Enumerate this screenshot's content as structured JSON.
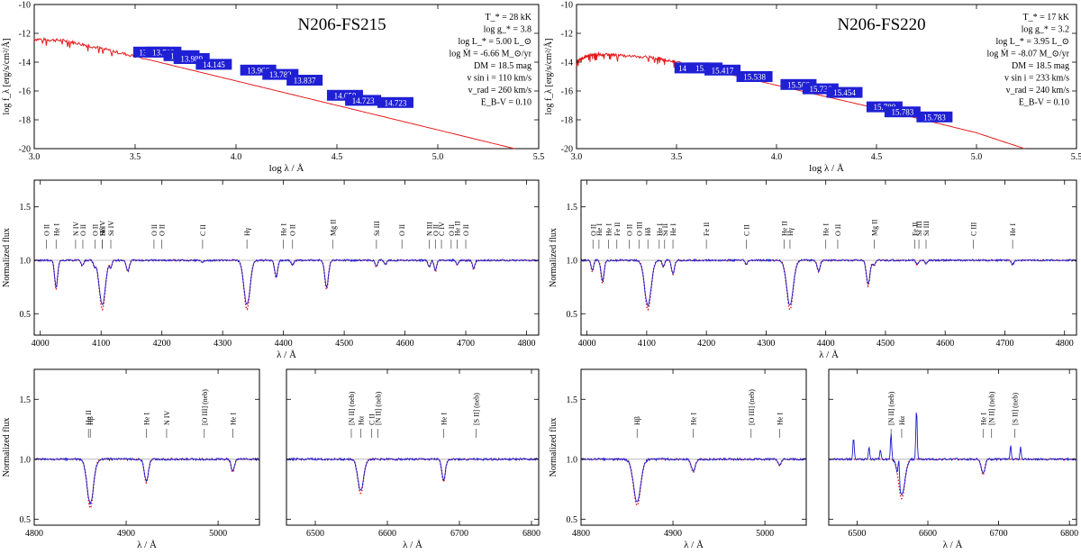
{
  "colors": {
    "model": "#e41a1c",
    "observed": "#1a1acc",
    "phot_box": "#1f1fd6",
    "axis": "#000000",
    "continuum": "#aaaaaa",
    "line_marker": "#444444"
  },
  "chart_data": [
    {
      "id": "sed-fs215",
      "type": "line",
      "title": "N206-FS215",
      "xlabel": "log λ / Å",
      "ylabel": "log f_λ  [erg/s/cm²/Å]",
      "xlim": [
        3.0,
        5.5
      ],
      "ylim": [
        -20,
        -10
      ],
      "xticks": [
        3.0,
        3.5,
        4.0,
        4.5,
        5.0,
        5.5
      ],
      "xtick_labels": [
        "3.0",
        "3.5",
        "4.0",
        "4.5",
        "5.0",
        "5.5"
      ],
      "yticks": [
        -20,
        -18,
        -16,
        -14,
        -12,
        -10
      ],
      "ytick_labels": [
        "-20",
        "-18",
        "-16",
        "-14",
        "-12",
        "-10"
      ],
      "series": [
        {
          "name": "model SED",
          "x": [
            3.0,
            3.15,
            3.3,
            3.5,
            4.0,
            4.5,
            5.0,
            5.38
          ],
          "y": [
            -12.4,
            -12.5,
            -12.95,
            -13.6,
            -15.3,
            -17.0,
            -18.7,
            -20.0
          ]
        }
      ],
      "photometry": [
        {
          "x": 3.58,
          "y": -13.3,
          "label": "13.13.7"
        },
        {
          "x": 3.64,
          "y": -13.3,
          "label": "13.712"
        },
        {
          "x": 3.73,
          "y": -13.55,
          "label": "13.516"
        },
        {
          "x": 3.78,
          "y": -13.75,
          "label": "13.989"
        },
        {
          "x": 3.89,
          "y": -14.15,
          "label": "14.145"
        },
        {
          "x": 4.11,
          "y": -14.55,
          "label": "13.966"
        },
        {
          "x": 4.22,
          "y": -14.85,
          "label": "13.782"
        },
        {
          "x": 4.34,
          "y": -15.25,
          "label": "13.837"
        },
        {
          "x": 4.54,
          "y": -16.3,
          "label": "14.658"
        },
        {
          "x": 4.63,
          "y": -16.65,
          "label": "14.723"
        },
        {
          "x": 4.79,
          "y": -16.8,
          "label": "14.723"
        }
      ],
      "params": [
        "T_* = 28 kK",
        "log g_* = 3.8",
        "log L_* = 5.00 L_⊙",
        "log Ṁ = -6.66 M_⊙/yr",
        "DM = 18.5 mag",
        "v sin i = 110 km/s",
        "v_rad = 260 km/s",
        "E_B-V = 0.10"
      ]
    },
    {
      "id": "sed-fs220",
      "type": "line",
      "title": "N206-FS220",
      "xlabel": "log λ / Å",
      "ylabel": "log f_λ  [erg/s/cm²/Å]",
      "xlim": [
        3.0,
        5.5
      ],
      "ylim": [
        -20,
        -10
      ],
      "xticks": [
        3.0,
        3.5,
        4.0,
        4.5,
        5.0,
        5.5
      ],
      "xtick_labels": [
        "3.0",
        "3.5",
        "4.0",
        "4.5",
        "5.0",
        "5.5"
      ],
      "yticks": [
        -20,
        -18,
        -16,
        -14,
        -12,
        -10
      ],
      "ytick_labels": [
        "-20",
        "-18",
        "-16",
        "-14",
        "-12",
        "-10"
      ],
      "series": [
        {
          "name": "model SED",
          "x": [
            3.0,
            3.05,
            3.1,
            3.2,
            3.4,
            3.5,
            4.0,
            4.5,
            5.0,
            5.24
          ],
          "y": [
            -13.9,
            -13.6,
            -13.45,
            -13.5,
            -13.7,
            -14.0,
            -15.6,
            -17.2,
            -18.9,
            -20.0
          ]
        }
      ],
      "photometry": [
        {
          "x": 3.58,
          "y": -14.4,
          "label": "14.15.32"
        },
        {
          "x": 3.64,
          "y": -14.4,
          "label": "15.22"
        },
        {
          "x": 3.73,
          "y": -14.55,
          "label": "15.417"
        },
        {
          "x": 3.89,
          "y": -15.0,
          "label": "15.538"
        },
        {
          "x": 4.11,
          "y": -15.55,
          "label": "15.566"
        },
        {
          "x": 4.22,
          "y": -15.85,
          "label": "15.736"
        },
        {
          "x": 4.34,
          "y": -16.1,
          "label": "15.454"
        },
        {
          "x": 4.54,
          "y": -17.1,
          "label": "15.788"
        },
        {
          "x": 4.63,
          "y": -17.45,
          "label": "15.783"
        },
        {
          "x": 4.79,
          "y": -17.8,
          "label": "15.783"
        }
      ],
      "params": [
        "T_* = 17 kK",
        "log g_* = 3.2",
        "log L_* = 3.95 L_⊙",
        "log Ṁ = -8.07 M_⊙/yr",
        "DM = 18.5 mag",
        "v sin i = 233 km/s",
        "v_rad = 240 km/s",
        "E_B-V = 0.10"
      ]
    },
    {
      "id": "blue-fs215",
      "type": "line",
      "title": "",
      "xlabel": "λ / Å",
      "ylabel": "Normalized flux",
      "xlim": [
        3990,
        4820
      ],
      "ylim": [
        0.3,
        1.75
      ],
      "xticks": [
        4000,
        4100,
        4200,
        4300,
        4400,
        4500,
        4600,
        4700,
        4800
      ],
      "xtick_labels": [
        "4000",
        "4100",
        "4200",
        "4300",
        "4400",
        "4500",
        "4600",
        "4700",
        "4800"
      ],
      "yticks": [
        0.5,
        1.0,
        1.5
      ],
      "ytick_labels": [
        "0.5",
        "1.0",
        "1.5"
      ],
      "absorption_lines": [
        {
          "center": 4026,
          "depth": 0.25,
          "width": 2.5
        },
        {
          "center": 4069,
          "depth": 0.05,
          "width": 2
        },
        {
          "center": 4089,
          "depth": 0.05,
          "width": 2
        },
        {
          "center": 4102,
          "depth": 0.42,
          "width": 5
        },
        {
          "center": 4116,
          "depth": 0.06,
          "width": 2
        },
        {
          "center": 4144,
          "depth": 0.1,
          "width": 2.5
        },
        {
          "center": 4267,
          "depth": 0.02,
          "width": 2
        },
        {
          "center": 4340,
          "depth": 0.42,
          "width": 5
        },
        {
          "center": 4388,
          "depth": 0.15,
          "width": 2.5
        },
        {
          "center": 4415,
          "depth": 0.04,
          "width": 2
        },
        {
          "center": 4471,
          "depth": 0.25,
          "width": 3
        },
        {
          "center": 4553,
          "depth": 0.06,
          "width": 2
        },
        {
          "center": 4568,
          "depth": 0.04,
          "width": 2
        },
        {
          "center": 4640,
          "depth": 0.06,
          "width": 2
        },
        {
          "center": 4650,
          "depth": 0.1,
          "width": 2
        },
        {
          "center": 4686,
          "depth": 0.04,
          "width": 2
        },
        {
          "center": 4713,
          "depth": 0.08,
          "width": 2
        }
      ],
      "line_ids": [
        {
          "x": 4010,
          "label": "O II"
        },
        {
          "x": 4026,
          "label": "He I"
        },
        {
          "x": 4058,
          "label": "N IV"
        },
        {
          "x": 4070,
          "label": "O II"
        },
        {
          "x": 4090,
          "label": "O II"
        },
        {
          "x": 4102,
          "label": "Si IV"
        },
        {
          "x": 4102,
          "label": "Hδ"
        },
        {
          "x": 4116,
          "label": "Si IV"
        },
        {
          "x": 4187,
          "label": "O II"
        },
        {
          "x": 4200,
          "label": "O II"
        },
        {
          "x": 4267,
          "label": "C II"
        },
        {
          "x": 4340,
          "label": "Hγ"
        },
        {
          "x": 4400,
          "label": "He I"
        },
        {
          "x": 4415,
          "label": "O II"
        },
        {
          "x": 4481,
          "label": "Mg II"
        },
        {
          "x": 4553,
          "label": "Si III"
        },
        {
          "x": 4595,
          "label": "O II"
        },
        {
          "x": 4640,
          "label": "N III"
        },
        {
          "x": 4650,
          "label": "O II"
        },
        {
          "x": 4660,
          "label": "C IV"
        },
        {
          "x": 4676,
          "label": "O II"
        },
        {
          "x": 4686,
          "label": "He II"
        },
        {
          "x": 4700,
          "label": "O II"
        }
      ]
    },
    {
      "id": "blue-fs220",
      "type": "line",
      "title": "",
      "xlabel": "λ / Å",
      "ylabel": "Normalized flux",
      "xlim": [
        3990,
        4820
      ],
      "ylim": [
        0.3,
        1.75
      ],
      "xticks": [
        4000,
        4100,
        4200,
        4300,
        4400,
        4500,
        4600,
        4700,
        4800
      ],
      "xtick_labels": [
        "4000",
        "4100",
        "4200",
        "4300",
        "4400",
        "4500",
        "4600",
        "4700",
        "4800"
      ],
      "yticks": [
        0.5,
        1.0,
        1.5
      ],
      "ytick_labels": [
        "0.5",
        "1.0",
        "1.5"
      ],
      "absorption_lines": [
        {
          "center": 4009,
          "depth": 0.1,
          "width": 2
        },
        {
          "center": 4026,
          "depth": 0.2,
          "width": 2.5
        },
        {
          "center": 4102,
          "depth": 0.42,
          "width": 5.5
        },
        {
          "center": 4128,
          "depth": 0.06,
          "width": 2
        },
        {
          "center": 4144,
          "depth": 0.12,
          "width": 2.5
        },
        {
          "center": 4267,
          "depth": 0.04,
          "width": 2
        },
        {
          "center": 4340,
          "depth": 0.42,
          "width": 5.5
        },
        {
          "center": 4388,
          "depth": 0.1,
          "width": 2.5
        },
        {
          "center": 4471,
          "depth": 0.22,
          "width": 3
        },
        {
          "center": 4481,
          "depth": 0.05,
          "width": 2
        },
        {
          "center": 4553,
          "depth": 0.04,
          "width": 2
        },
        {
          "center": 4568,
          "depth": 0.03,
          "width": 2
        },
        {
          "center": 4713,
          "depth": 0.04,
          "width": 2
        }
      ],
      "line_ids": [
        {
          "x": 4010,
          "label": "O II"
        },
        {
          "x": 4020,
          "label": "He I"
        },
        {
          "x": 4036,
          "label": "He I"
        },
        {
          "x": 4050,
          "label": "Fe II"
        },
        {
          "x": 4071,
          "label": "O II"
        },
        {
          "x": 4087,
          "label": "O III"
        },
        {
          "x": 4102,
          "label": "Hδ"
        },
        {
          "x": 4121,
          "label": "He I"
        },
        {
          "x": 4130,
          "label": "Si II"
        },
        {
          "x": 4144,
          "label": "He I"
        },
        {
          "x": 4200,
          "label": "Fe II"
        },
        {
          "x": 4267,
          "label": "C II"
        },
        {
          "x": 4330,
          "label": "He II"
        },
        {
          "x": 4340,
          "label": "Hγ"
        },
        {
          "x": 4400,
          "label": "He I"
        },
        {
          "x": 4420,
          "label": "O II"
        },
        {
          "x": 4481,
          "label": "Mg II"
        },
        {
          "x": 4549,
          "label": "Fe II"
        },
        {
          "x": 4556,
          "label": "Si III"
        },
        {
          "x": 4568,
          "label": "Si III"
        },
        {
          "x": 4647,
          "label": "C III"
        },
        {
          "x": 4713,
          "label": "He I"
        }
      ]
    },
    {
      "id": "hbeta-fs215",
      "type": "line",
      "title": "",
      "xlabel": "λ / Å",
      "ylabel": "Normalized flux",
      "xlim": [
        4800,
        5045
      ],
      "ylim": [
        0.45,
        1.75
      ],
      "xticks": [
        4800,
        4900,
        5000
      ],
      "xtick_labels": [
        "4800",
        "4900",
        "5000"
      ],
      "yticks": [
        0.5,
        1.0,
        1.5
      ],
      "ytick_labels": [
        "0.5",
        "1.0",
        "1.5"
      ],
      "absorption_lines": [
        {
          "center": 4861,
          "depth": 0.37,
          "width": 3.5
        },
        {
          "center": 4922,
          "depth": 0.18,
          "width": 2.2
        },
        {
          "center": 5016,
          "depth": 0.1,
          "width": 1.8
        }
      ],
      "line_ids": [
        {
          "x": 4859,
          "label": "He II"
        },
        {
          "x": 4861,
          "label": "Hβ"
        },
        {
          "x": 4922,
          "label": "He I"
        },
        {
          "x": 4944,
          "label": "N IV"
        },
        {
          "x": 4985,
          "label": "[O III] (neb)"
        },
        {
          "x": 5016,
          "label": "He I"
        }
      ]
    },
    {
      "id": "halpha-fs215",
      "type": "line",
      "title": "",
      "xlabel": "λ / Å",
      "ylabel": "",
      "xlim": [
        6460,
        6810
      ],
      "ylim": [
        0.45,
        1.75
      ],
      "xticks": [
        6500,
        6600,
        6700,
        6800
      ],
      "xtick_labels": [
        "6500",
        "6600",
        "6700",
        "6800"
      ],
      "yticks": [
        0.5,
        1.0,
        1.5
      ],
      "ytick_labels": [
        "",
        "",
        ""
      ],
      "absorption_lines": [
        {
          "center": 6563,
          "depth": 0.26,
          "width": 4
        },
        {
          "center": 6678,
          "depth": 0.17,
          "width": 2.5
        }
      ],
      "line_ids": [
        {
          "x": 6550,
          "label": "[N II] (neb)"
        },
        {
          "x": 6563,
          "label": "Hα"
        },
        {
          "x": 6578,
          "label": "C II"
        },
        {
          "x": 6587,
          "label": "[N II] (neb)"
        },
        {
          "x": 6678,
          "label": "He I"
        },
        {
          "x": 6723,
          "label": "[S II] (neb)"
        }
      ]
    },
    {
      "id": "hbeta-fs220",
      "type": "line",
      "title": "",
      "xlabel": "λ / Å",
      "ylabel": "Normalized flux",
      "xlim": [
        4800,
        5045
      ],
      "ylim": [
        0.45,
        1.75
      ],
      "xticks": [
        4800,
        4900,
        5000
      ],
      "xtick_labels": [
        "4800",
        "4900",
        "5000"
      ],
      "yticks": [
        0.5,
        1.0,
        1.5
      ],
      "ytick_labels": [
        "0.5",
        "1.0",
        "1.5"
      ],
      "absorption_lines": [
        {
          "center": 4861,
          "depth": 0.35,
          "width": 4
        },
        {
          "center": 4922,
          "depth": 0.1,
          "width": 2.2
        },
        {
          "center": 5016,
          "depth": 0.05,
          "width": 1.8
        }
      ],
      "line_ids": [
        {
          "x": 4861,
          "label": "Hβ"
        },
        {
          "x": 4922,
          "label": "He I"
        },
        {
          "x": 4985,
          "label": "[O III] (neb)"
        },
        {
          "x": 5016,
          "label": "He I"
        }
      ]
    },
    {
      "id": "halpha-fs220",
      "type": "line",
      "title": "",
      "xlabel": "λ / Å",
      "ylabel": "",
      "xlim": [
        6460,
        6810
      ],
      "ylim": [
        0.45,
        1.75
      ],
      "xticks": [
        6500,
        6600,
        6700,
        6800
      ],
      "xtick_labels": [
        "6500",
        "6600",
        "6700",
        "6800"
      ],
      "yticks": [
        0.5,
        1.0,
        1.5
      ],
      "ytick_labels": [
        "",
        "",
        ""
      ],
      "absorption_lines": [
        {
          "center": 6563,
          "depth": 0.3,
          "width": 4.5
        },
        {
          "center": 6678,
          "depth": 0.12,
          "width": 2.5
        }
      ],
      "emission_lines": [
        {
          "center": 6495,
          "height": 0.18
        },
        {
          "center": 6517,
          "height": 0.1
        },
        {
          "center": 6533,
          "height": 0.08
        },
        {
          "center": 6548,
          "height": 0.22
        },
        {
          "center": 6559,
          "height": 0.2
        },
        {
          "center": 6584,
          "height": 0.42
        },
        {
          "center": 6717,
          "height": 0.12
        },
        {
          "center": 6731,
          "height": 0.1
        }
      ],
      "line_ids": [
        {
          "x": 6548,
          "label": "[N II] (neb)"
        },
        {
          "x": 6563,
          "label": "Hα"
        },
        {
          "x": 6678,
          "label": "He I"
        },
        {
          "x": 6690,
          "label": "[N II] (neb)"
        },
        {
          "x": 6723,
          "label": "[S II] (neb)"
        }
      ]
    }
  ]
}
